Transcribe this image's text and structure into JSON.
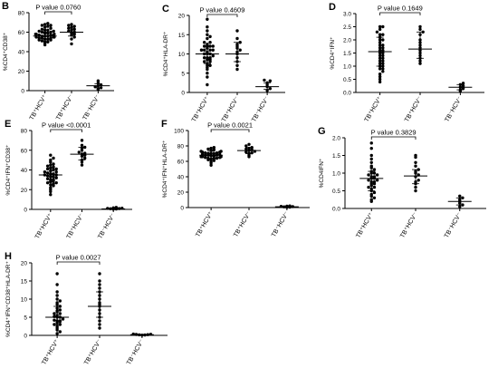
{
  "chart_data": [
    {
      "type": "scatter",
      "panel_label": "B",
      "ylabel": "%CD4+CD38+",
      "yticks": [
        0,
        20,
        40,
        60,
        80
      ],
      "ylim": [
        0,
        80
      ],
      "categories": [
        "TB+HCV+",
        "TB+HCV-",
        "TB-HCV-"
      ],
      "p_value_text": "P value  0.0760",
      "summary": [
        {
          "median": 56,
          "iqr": [
            52,
            60
          ]
        },
        {
          "median": 60,
          "iqr": [
            56,
            64
          ]
        },
        {
          "median": 5,
          "iqr": [
            3,
            7
          ]
        }
      ],
      "series": [
        {
          "values": [
            47,
            49,
            50,
            51,
            52,
            52,
            53,
            53,
            54,
            54,
            55,
            55,
            55,
            56,
            56,
            56,
            57,
            57,
            57,
            58,
            58,
            58,
            59,
            59,
            60,
            60,
            61,
            61,
            62,
            62,
            63,
            64,
            65,
            66,
            67,
            67,
            68,
            69,
            50,
            54
          ]
        },
        {
          "values": [
            48,
            53,
            55,
            57,
            58,
            59,
            60,
            61,
            62,
            63,
            64,
            65,
            66,
            67,
            68
          ]
        },
        {
          "values": [
            1,
            2,
            3,
            4,
            5,
            6,
            8,
            10
          ]
        }
      ]
    },
    {
      "type": "scatter",
      "panel_label": "C",
      "ylabel": "%CD4+HLA-DR+",
      "yticks": [
        0,
        5,
        10,
        15,
        20
      ],
      "ylim": [
        0,
        20
      ],
      "categories": [
        "TB+HCV+",
        "TB+HCV-",
        "TB-HCV-"
      ],
      "p_value_text": "P value  0.4609",
      "summary": [
        {
          "median": 10,
          "iqr": [
            7.5,
            12
          ]
        },
        {
          "median": 10,
          "iqr": [
            8,
            13
          ]
        },
        {
          "median": 1.5,
          "iqr": [
            0.8,
            2.5
          ]
        }
      ],
      "series": [
        {
          "values": [
            2,
            4,
            5,
            6,
            6.5,
            7,
            7,
            7.5,
            8,
            8,
            8.5,
            9,
            9,
            9,
            9.5,
            10,
            10,
            10,
            10.5,
            11,
            11,
            11,
            11.5,
            12,
            12,
            12,
            12.5,
            13,
            13,
            14,
            14.5,
            15,
            16,
            17,
            19,
            8.5,
            11,
            12
          ]
        },
        {
          "values": [
            6,
            7,
            8,
            9,
            10,
            10.5,
            11,
            11.5,
            12,
            12.5,
            13,
            14,
            16
          ]
        },
        {
          "values": [
            0.5,
            1,
            1.5,
            2,
            2.5,
            3,
            3.2
          ]
        }
      ]
    },
    {
      "type": "scatter",
      "panel_label": "D",
      "ylabel": "%CD4+IFN+",
      "yticks": [
        0.0,
        0.5,
        1.0,
        1.5,
        2.0,
        2.5,
        3.0
      ],
      "ylim": [
        0,
        3
      ],
      "categories": [
        "TB+HCV+",
        "TB+HCV-",
        "TB-HCV-"
      ],
      "p_value_text": "P value  0.1649",
      "summary": [
        {
          "median": 1.55,
          "iqr": [
            1.0,
            2.1
          ]
        },
        {
          "median": 1.65,
          "iqr": [
            1.3,
            2.3
          ]
        },
        {
          "median": 0.2,
          "iqr": [
            0.1,
            0.3
          ]
        }
      ],
      "series": [
        {
          "values": [
            0.4,
            0.5,
            0.6,
            0.7,
            0.8,
            0.9,
            1.0,
            1.0,
            1.1,
            1.2,
            1.2,
            1.3,
            1.4,
            1.4,
            1.5,
            1.5,
            1.6,
            1.6,
            1.7,
            1.8,
            1.8,
            1.9,
            2.0,
            2.0,
            2.1,
            2.2,
            2.2,
            2.3,
            2.4,
            2.5,
            2.5,
            1.1,
            1.3,
            1.7,
            0.9
          ]
        },
        {
          "values": [
            1.1,
            1.2,
            1.3,
            1.4,
            1.5,
            1.6,
            1.7,
            1.8,
            1.9,
            2.0,
            2.2,
            2.3,
            2.4,
            2.5
          ]
        },
        {
          "values": [
            0.05,
            0.1,
            0.15,
            0.2,
            0.25,
            0.3,
            0.35
          ]
        }
      ]
    },
    {
      "type": "scatter",
      "panel_label": "E",
      "ylabel": "%CD4+IFN+CD38+",
      "yticks": [
        0,
        20,
        40,
        60,
        80
      ],
      "ylim": [
        0,
        80
      ],
      "categories": [
        "TB+HCV+",
        "TB+HCV-",
        "TB-HCV-"
      ],
      "p_value_text": "P value  <0.0001",
      "summary": [
        {
          "median": 35,
          "iqr": [
            28,
            42
          ]
        },
        {
          "median": 56,
          "iqr": [
            50,
            63
          ]
        },
        {
          "median": 0.5,
          "iqr": [
            0.2,
            1
          ]
        }
      ],
      "series": [
        {
          "values": [
            15,
            18,
            20,
            22,
            24,
            25,
            26,
            27,
            28,
            29,
            30,
            31,
            32,
            33,
            34,
            35,
            36,
            36,
            37,
            38,
            39,
            40,
            41,
            42,
            43,
            44,
            45,
            46,
            48,
            50,
            52,
            55,
            30,
            33,
            38,
            27,
            41,
            35
          ]
        },
        {
          "values": [
            45,
            48,
            50,
            52,
            54,
            55,
            56,
            57,
            58,
            60,
            62,
            63,
            65,
            70
          ]
        },
        {
          "values": [
            0.2,
            0.4,
            0.6,
            0.8,
            1,
            1.2,
            1.5,
            2
          ]
        }
      ]
    },
    {
      "type": "scatter",
      "panel_label": "F",
      "ylabel": "%CD4+IFN+HLA-DR+",
      "yticks": [
        0,
        20,
        40,
        60,
        80,
        100
      ],
      "ylim": [
        0,
        100
      ],
      "categories": [
        "TB+HCV+",
        "TB+HCV-",
        "TB-HCV-"
      ],
      "p_value_text": "P value  0.0021",
      "summary": [
        {
          "median": 68,
          "iqr": [
            63,
            73
          ]
        },
        {
          "median": 74,
          "iqr": [
            70,
            78
          ]
        },
        {
          "median": 1,
          "iqr": [
            0.5,
            1.5
          ]
        }
      ],
      "series": [
        {
          "values": [
            55,
            58,
            60,
            61,
            62,
            63,
            64,
            64,
            65,
            65,
            66,
            66,
            67,
            67,
            68,
            68,
            69,
            69,
            70,
            70,
            71,
            71,
            72,
            72,
            73,
            73,
            74,
            75,
            76,
            77,
            78,
            66,
            68,
            70,
            64
          ]
        },
        {
          "values": [
            66,
            68,
            70,
            71,
            72,
            73,
            74,
            75,
            76,
            77,
            78,
            80,
            82
          ]
        },
        {
          "values": [
            0.3,
            0.6,
            0.9,
            1.2,
            1.5,
            1.8,
            2.1
          ]
        }
      ]
    },
    {
      "type": "scatter",
      "panel_label": "G",
      "ylabel": "%CD4IFN+",
      "yticks": [
        0.0,
        0.5,
        1.0,
        1.5,
        2.0
      ],
      "ylim": [
        0,
        2
      ],
      "categories": [
        "TB+HCV+",
        "TB+HCV-",
        "TB-HCV-"
      ],
      "p_value_text": "P value  0.3829",
      "summary": [
        {
          "median": 0.85,
          "iqr": [
            0.5,
            1.05
          ]
        },
        {
          "median": 0.92,
          "iqr": [
            0.7,
            1.1
          ]
        },
        {
          "median": 0.2,
          "iqr": [
            0.1,
            0.3
          ]
        }
      ],
      "series": [
        {
          "values": [
            0.2,
            0.25,
            0.3,
            0.35,
            0.4,
            0.45,
            0.5,
            0.55,
            0.6,
            0.65,
            0.7,
            0.75,
            0.8,
            0.8,
            0.85,
            0.85,
            0.9,
            0.9,
            0.95,
            1.0,
            1.0,
            1.05,
            1.1,
            1.15,
            1.2,
            1.3,
            1.4,
            1.5,
            1.7,
            1.85,
            0.75,
            0.95,
            0.6,
            0.7
          ]
        },
        {
          "values": [
            0.5,
            0.6,
            0.7,
            0.75,
            0.8,
            0.9,
            0.95,
            1.0,
            1.05,
            1.1,
            1.2,
            1.3,
            1.45,
            1.5
          ]
        },
        {
          "values": [
            0.05,
            0.1,
            0.15,
            0.2,
            0.25,
            0.3,
            0.35
          ]
        }
      ]
    },
    {
      "type": "scatter",
      "panel_label": "H",
      "ylabel": "%CD4+IFN+CD38+HLA-DR+",
      "yticks": [
        0,
        5,
        10,
        15,
        20
      ],
      "ylim": [
        0,
        20
      ],
      "categories": [
        "TB+HCV+",
        "TB+HCV-",
        "TB-HCV-"
      ],
      "p_value_text": "P value  0.0027",
      "summary": [
        {
          "median": 5,
          "iqr": [
            3,
            8
          ]
        },
        {
          "median": 8,
          "iqr": [
            5,
            12
          ]
        },
        {
          "median": 0.2,
          "iqr": [
            0.1,
            0.3
          ]
        }
      ],
      "series": [
        {
          "values": [
            0.5,
            1,
            1.5,
            2,
            2.5,
            3,
            3,
            3.5,
            4,
            4,
            4.5,
            5,
            5,
            5.5,
            6,
            6,
            6.5,
            7,
            7.5,
            8,
            8.5,
            9,
            9.5,
            10,
            11,
            12,
            14,
            17,
            3.8,
            5.2,
            6.8,
            4.2
          ]
        },
        {
          "values": [
            2,
            3,
            4,
            5,
            6,
            7,
            8,
            8.5,
            9,
            10,
            11,
            12,
            13,
            14,
            15,
            17
          ]
        },
        {
          "values": [
            0.05,
            0.1,
            0.15,
            0.2,
            0.25,
            0.3,
            0.35
          ]
        }
      ]
    }
  ]
}
